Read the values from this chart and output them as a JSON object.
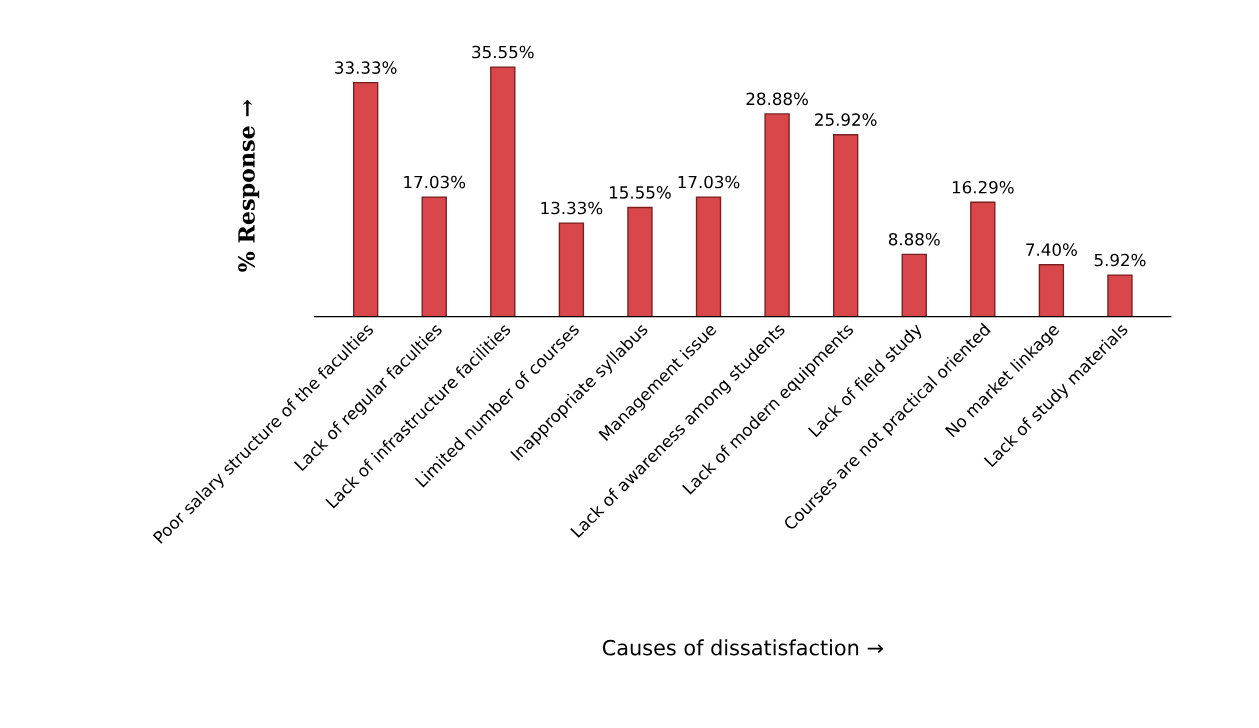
{
  "chart_data": {
    "type": "bar",
    "ylabel": "% Response →",
    "xlabel": "Causes of dissatisfaction →",
    "categories": [
      "Poor salary structure of the faculties",
      "Lack of regular faculties",
      "Lack of infrastructure facilities",
      "Limited number of courses",
      "Inappropriate syllabus",
      "Management issue",
      "Lack of awareness among students",
      "Lack of modern equipments",
      "Lack of field study",
      "Courses are not practical oriented",
      "No market linkage",
      "Lack of study materials"
    ],
    "values": [
      33.33,
      17.03,
      35.55,
      13.33,
      15.55,
      17.03,
      28.88,
      25.92,
      8.88,
      16.29,
      7.4,
      5.92
    ],
    "value_labels": [
      "33.33%",
      "17.03%",
      "35.55%",
      "13.33%",
      "15.55%",
      "17.03%",
      "28.88%",
      "25.92%",
      "8.88%",
      "16.29%",
      "7.40%",
      "5.92%"
    ],
    "color": "#d9474a",
    "tick_labels": "x",
    "grid": false,
    "legend": false
  }
}
